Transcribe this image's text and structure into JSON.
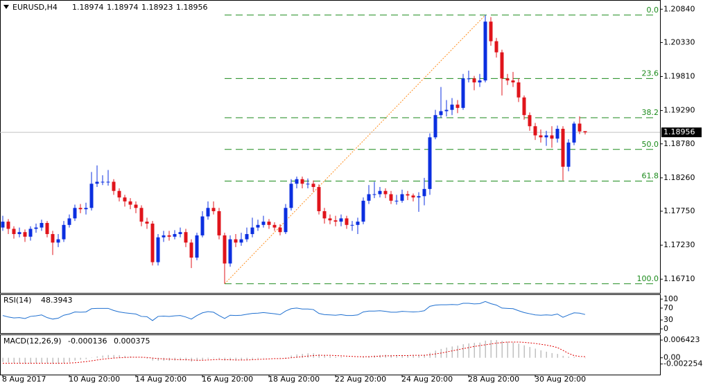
{
  "chart_data": [
    {
      "type": "candlestick",
      "title": "EURUSD,H4",
      "categories": [
        "8 Aug 2017",
        null,
        null,
        null,
        null,
        null,
        null,
        null,
        null,
        null,
        null,
        null,
        "10 Aug 20:00",
        null,
        null,
        null,
        null,
        null,
        null,
        null,
        null,
        null,
        null,
        null,
        "14 Aug 20:00",
        null,
        null,
        null,
        null,
        null,
        null,
        null,
        null,
        null,
        null,
        null,
        "16 Aug 20:00",
        null,
        null,
        null,
        null,
        null,
        null,
        null,
        null,
        null,
        null,
        null,
        "18 Aug 20:00",
        null,
        null,
        null,
        null,
        null,
        null,
        null,
        null,
        null,
        null,
        null,
        "22 Aug 20:00",
        null,
        null,
        null,
        null,
        null,
        null,
        null,
        null,
        null,
        null,
        null,
        "24 Aug 20:00",
        null,
        null,
        null,
        null,
        null,
        null,
        null,
        null,
        null,
        null,
        null,
        "28 Aug 20:00",
        null,
        null,
        null,
        null,
        null,
        null,
        null,
        null,
        null,
        null,
        null,
        "30 Aug 20:00",
        null,
        null,
        null,
        null,
        null,
        null,
        null,
        null,
        null
      ],
      "open": [
        1.175,
        1.1759,
        1.1748,
        1.174,
        1.1743,
        1.1736,
        1.1748,
        1.175,
        1.1757,
        1.174,
        1.1727,
        1.1732,
        1.1754,
        1.1764,
        1.178,
        1.1778,
        1.178,
        1.1817,
        1.182,
        1.182,
        1.182,
        1.1806,
        1.1796,
        1.179,
        1.1785,
        1.178,
        1.1759,
        1.1756,
        1.1697,
        1.1735,
        1.1738,
        1.1736,
        1.174,
        1.1743,
        1.1727,
        1.1704,
        1.1738,
        1.1767,
        1.178,
        1.1775,
        1.1738,
        1.1695,
        1.1732,
        1.1727,
        1.1732,
        1.174,
        1.175,
        1.1754,
        1.1759,
        1.1754,
        1.175,
        1.1743,
        1.178,
        1.1817,
        1.1824,
        1.1817,
        1.1817,
        1.1812,
        1.1775,
        1.1764,
        1.1761,
        1.1759,
        1.1764,
        1.1754,
        1.1754,
        1.1759,
        1.1791,
        1.1801,
        1.1801,
        1.1806,
        1.1801,
        1.1791,
        1.1791,
        1.1801,
        1.1799,
        1.1796,
        1.1798,
        1.1809,
        1.1888,
        1.1922,
        1.1928,
        1.193,
        1.1938,
        1.1933,
        1.1978,
        1.1978,
        1.1972,
        1.1975,
        1.2065,
        1.2035,
        1.2018,
        1.1978,
        1.1975,
        1.1972,
        1.1949,
        1.1922,
        1.1905,
        1.1891,
        1.1888,
        1.1891,
        1.1886,
        1.1901,
        1.1843,
        1.188,
        1.1909,
        1.18974
      ],
      "high": [
        1.1768,
        1.1763,
        1.1752,
        1.175,
        1.1747,
        1.1752,
        1.1756,
        1.1762,
        1.176,
        1.1745,
        1.174,
        1.176,
        1.177,
        1.1785,
        1.1786,
        1.1788,
        1.1835,
        1.1845,
        1.183,
        1.1838,
        1.1824,
        1.181,
        1.18,
        1.1795,
        1.179,
        1.1784,
        1.1765,
        1.176,
        1.174,
        1.1745,
        1.1745,
        1.1746,
        1.175,
        1.1748,
        1.1732,
        1.1742,
        1.1775,
        1.179,
        1.179,
        1.178,
        1.1742,
        1.1738,
        1.174,
        1.1742,
        1.175,
        1.1765,
        1.1762,
        1.1768,
        1.1763,
        1.1758,
        1.1755,
        1.1786,
        1.1824,
        1.1828,
        1.1828,
        1.1825,
        1.1822,
        1.1816,
        1.178,
        1.177,
        1.1768,
        1.177,
        1.1768,
        1.176,
        1.1765,
        1.1796,
        1.1815,
        1.182,
        1.1812,
        1.181,
        1.1806,
        1.18,
        1.1808,
        1.1806,
        1.1802,
        1.1804,
        1.1826,
        1.1894,
        1.193,
        1.1965,
        1.1945,
        1.1948,
        1.1945,
        1.1985,
        1.199,
        1.1982,
        1.1985,
        1.2075,
        1.2072,
        1.204,
        1.2022,
        1.1985,
        1.1988,
        1.1978,
        1.1952,
        1.1926,
        1.191,
        1.19,
        1.1898,
        1.1905,
        1.1906,
        1.1905,
        1.1885,
        1.1912,
        1.192,
        1.18974
      ],
      "low": [
        1.1745,
        1.174,
        1.1733,
        1.1735,
        1.1728,
        1.173,
        1.1742,
        1.1745,
        1.1735,
        1.1708,
        1.172,
        1.1728,
        1.175,
        1.176,
        1.1772,
        1.177,
        1.1776,
        1.1812,
        1.1815,
        1.1814,
        1.18,
        1.179,
        1.1782,
        1.1778,
        1.1772,
        1.1752,
        1.1748,
        1.1692,
        1.1692,
        1.1728,
        1.173,
        1.1732,
        1.1735,
        1.172,
        1.1688,
        1.17,
        1.1735,
        1.1762,
        1.177,
        1.1732,
        1.1664,
        1.169,
        1.172,
        1.1722,
        1.1728,
        1.1735,
        1.1745,
        1.175,
        1.1748,
        1.1745,
        1.1738,
        1.174,
        1.1776,
        1.181,
        1.181,
        1.181,
        1.1805,
        1.177,
        1.1756,
        1.1755,
        1.1752,
        1.1752,
        1.1748,
        1.1745,
        1.174,
        1.1755,
        1.1786,
        1.1795,
        1.1796,
        1.1795,
        1.1786,
        1.1785,
        1.1788,
        1.1792,
        1.179,
        1.1774,
        1.1784,
        1.18,
        1.1885,
        1.1918,
        1.192,
        1.1922,
        1.1925,
        1.193,
        1.1972,
        1.196,
        1.1965,
        1.1972,
        1.2028,
        1.201,
        1.1952,
        1.1968,
        1.1965,
        1.1942,
        1.1915,
        1.1898,
        1.1884,
        1.188,
        1.1875,
        1.1872,
        1.188,
        1.1822,
        1.1836,
        1.1876,
        1.1893,
        1.18923
      ],
      "close": [
        1.1759,
        1.1748,
        1.174,
        1.1743,
        1.1736,
        1.1748,
        1.175,
        1.1757,
        1.174,
        1.1727,
        1.1732,
        1.1754,
        1.1764,
        1.178,
        1.1778,
        1.178,
        1.1817,
        1.182,
        1.182,
        1.182,
        1.1806,
        1.1796,
        1.179,
        1.1785,
        1.178,
        1.1759,
        1.1756,
        1.1697,
        1.1735,
        1.1738,
        1.1736,
        1.174,
        1.1743,
        1.1727,
        1.1704,
        1.1738,
        1.1767,
        1.178,
        1.1775,
        1.1738,
        1.1695,
        1.1732,
        1.1727,
        1.1732,
        1.174,
        1.175,
        1.1754,
        1.1759,
        1.1754,
        1.175,
        1.1743,
        1.178,
        1.1817,
        1.1824,
        1.1817,
        1.1817,
        1.1812,
        1.1775,
        1.1764,
        1.1761,
        1.1759,
        1.1764,
        1.1754,
        1.1754,
        1.1759,
        1.1791,
        1.1801,
        1.1801,
        1.1806,
        1.1801,
        1.1791,
        1.1791,
        1.1801,
        1.1799,
        1.1796,
        1.1798,
        1.1809,
        1.1888,
        1.1922,
        1.1928,
        1.193,
        1.1938,
        1.1933,
        1.1978,
        1.1978,
        1.1972,
        1.1975,
        1.2065,
        1.2035,
        1.2018,
        1.1978,
        1.1975,
        1.1972,
        1.1949,
        1.1922,
        1.1905,
        1.1891,
        1.1888,
        1.1891,
        1.1886,
        1.1901,
        1.1843,
        1.188,
        1.1909,
        1.1897,
        1.18956
      ],
      "up_color": "#0b2fe0",
      "down_color": "#e0141b",
      "ylim": [
        1.165,
        1.2097
      ],
      "yticks": [
        {
          "value": 1.2084,
          "label": "1.20840"
        },
        {
          "value": 1.2033,
          "label": "1.20330"
        },
        {
          "value": 1.1981,
          "label": "1.19810"
        },
        {
          "value": 1.1929,
          "label": "1.19290"
        },
        {
          "value": 1.1878,
          "label": "1.18780"
        },
        {
          "value": 1.1826,
          "label": "1.18260"
        },
        {
          "value": 1.1775,
          "label": "1.17750"
        },
        {
          "value": 1.1723,
          "label": "1.17230"
        },
        {
          "value": 1.1671,
          "label": "1.16710"
        }
      ],
      "grid": false,
      "fibonacci": {
        "levels": [
          {
            "value": 0,
            "label": "0.0"
          },
          23.6,
          38.2,
          {
            "value": 50,
            "label": "50.0"
          },
          61.8,
          {
            "value": 100,
            "label": "100.0"
          }
        ],
        "color": "#1a8a1a",
        "trend_color": "#ff8c1a"
      }
    },
    {
      "type": "line",
      "title": "RSI(14)",
      "color": "#1e6fd0",
      "values": [
        45,
        40,
        37,
        38,
        35,
        42,
        44,
        47,
        38,
        33,
        36,
        46,
        50,
        57,
        56,
        57,
        68,
        69,
        69,
        69,
        62,
        57,
        54,
        52,
        50,
        42,
        41,
        28,
        42,
        43,
        42,
        44,
        45,
        40,
        33,
        45,
        54,
        58,
        56,
        45,
        35,
        46,
        45,
        46,
        49,
        52,
        53,
        55,
        53,
        51,
        48,
        60,
        68,
        70,
        67,
        67,
        65,
        52,
        48,
        47,
        46,
        48,
        45,
        45,
        47,
        57,
        60,
        60,
        61,
        59,
        56,
        56,
        59,
        58,
        57,
        58,
        61,
        76,
        80,
        81,
        81,
        82,
        81,
        86,
        86,
        84,
        85,
        92,
        85,
        80,
        70,
        69,
        68,
        61,
        55,
        51,
        47,
        46,
        47,
        46,
        50,
        39,
        47,
        54,
        53,
        48.3943
      ],
      "ylim": [
        -14,
        114
      ],
      "yticks": [
        100,
        70,
        30,
        0
      ]
    },
    {
      "type": "macd",
      "title": "MACD(12,26,9)",
      "series": [
        {
          "color": "#c0c0c0",
          "values": [
            -0.0015,
            -0.0017,
            -0.0019,
            -0.002,
            -0.0022,
            -0.0021,
            -0.002,
            -0.0018,
            -0.0019,
            -0.0022,
            -0.0022,
            -0.0019,
            -0.0015,
            -0.001,
            -0.0007,
            -0.0005,
            0.0001,
            0.0005,
            0.0008,
            0.001,
            0.001,
            0.0009,
            0.0007,
            0.0005,
            0.0003,
            -0.0001,
            -0.0003,
            -0.001,
            -0.0011,
            -0.0011,
            -0.0011,
            -0.001,
            -0.0009,
            -0.001,
            -0.0014,
            -0.0012,
            -0.0008,
            -0.0004,
            -0.0002,
            -0.0004,
            -0.001,
            -0.001,
            -0.001,
            -0.0009,
            -0.0007,
            -0.0005,
            -0.0003,
            -0.0001,
            0.0,
            0.0,
            -0.0001,
            0.0002,
            0.0008,
            0.0012,
            0.0014,
            0.0016,
            0.0016,
            0.0013,
            0.0009,
            0.0006,
            0.0004,
            0.0003,
            0.0001,
            0.0,
            0.0,
            0.0003,
            0.0006,
            0.0008,
            0.001,
            0.0011,
            0.001,
            0.001,
            0.001,
            0.001,
            0.001,
            0.001,
            0.0011,
            0.0018,
            0.0026,
            0.0032,
            0.0037,
            0.0041,
            0.0044,
            0.0049,
            0.0052,
            0.0054,
            0.0055,
            0.0062,
            0.0064,
            0.0064,
            0.0061,
            0.0058,
            0.0055,
            0.0051,
            0.0045,
            0.0039,
            0.0033,
            0.0027,
            0.0022,
            0.0017,
            0.0014,
            0.0007,
            0.0004,
            0.0003,
            0.0001,
            -0.000136
          ]
        },
        {
          "color": "#e00000",
          "values": [
            -0.002,
            -0.002,
            -0.002,
            -0.002,
            -0.002,
            -0.002,
            -0.002,
            -0.002,
            -0.002,
            -0.002,
            -0.002,
            -0.002,
            -0.0019,
            -0.0018,
            -0.0016,
            -0.0014,
            -0.0011,
            -0.0008,
            -0.0005,
            -0.0003,
            -0.0001,
            0.0,
            0.0001,
            0.0002,
            0.0002,
            0.0002,
            0.0001,
            -0.0001,
            -0.0003,
            -0.0004,
            -0.0005,
            -0.0006,
            -0.0007,
            -0.0007,
            -0.0008,
            -0.0009,
            -0.0009,
            -0.0008,
            -0.0007,
            -0.0006,
            -0.0007,
            -0.0007,
            -0.0008,
            -0.0008,
            -0.0008,
            -0.0007,
            -0.0006,
            -0.0005,
            -0.0004,
            -0.0003,
            -0.0003,
            -0.0002,
            0.0,
            0.0002,
            0.0004,
            0.0006,
            0.0008,
            0.0009,
            0.0009,
            0.0009,
            0.0008,
            0.0007,
            0.0006,
            0.0005,
            0.0004,
            0.0004,
            0.0004,
            0.0005,
            0.0006,
            0.0007,
            0.0007,
            0.0008,
            0.0008,
            0.0008,
            0.0009,
            0.0009,
            0.0009,
            0.0011,
            0.0014,
            0.0017,
            0.0021,
            0.0025,
            0.0029,
            0.0033,
            0.0037,
            0.0041,
            0.0044,
            0.0047,
            0.005,
            0.0053,
            0.0055,
            0.0057,
            0.0057,
            0.0057,
            0.0056,
            0.0054,
            0.0052,
            0.0049,
            0.0046,
            0.0042,
            0.0037,
            0.0027,
            0.0016,
            0.0008,
            0.0005,
            0.000375
          ]
        }
      ],
      "ylim": [
        -0.0061,
        0.0082
      ],
      "yticks": [
        0.006423,
        {
          "value": 0,
          "label": "0.00"
        },
        -0.002254
      ]
    }
  ]
}
